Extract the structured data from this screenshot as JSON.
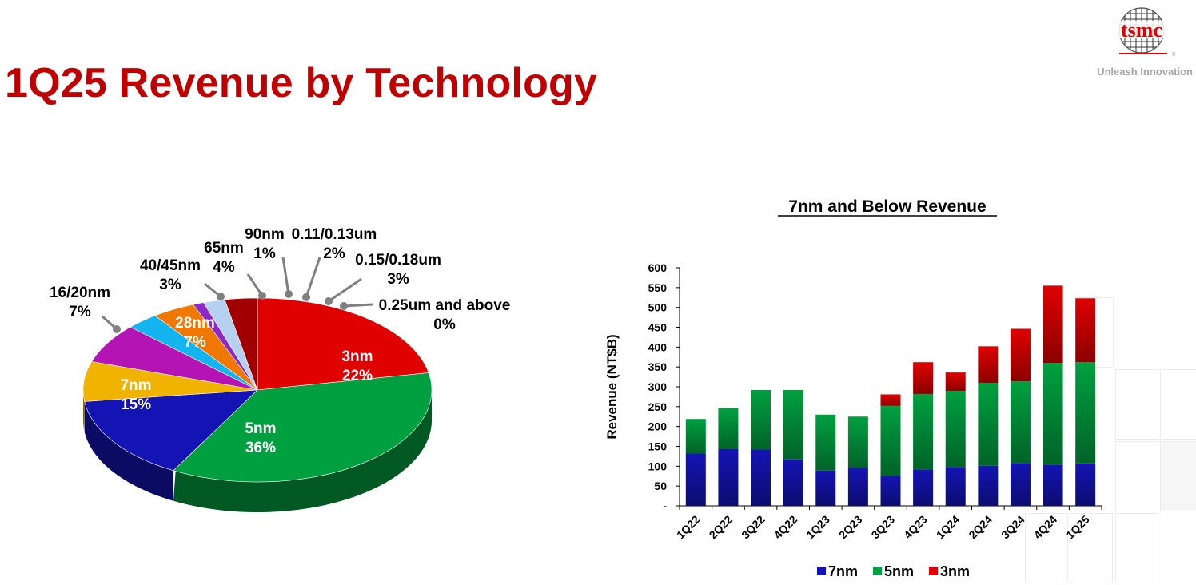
{
  "header": {
    "title": "1Q25 Revenue by Technology",
    "logo_text": "tsmc",
    "tagline": "Unleash Innovation"
  },
  "chart_data": [
    {
      "type": "pie",
      "title": "",
      "slices": [
        {
          "label": "3nm",
          "value": 22,
          "value_label": "22%",
          "color": "#e00000"
        },
        {
          "label": "5nm",
          "value": 36,
          "value_label": "36%",
          "color": "#00a040"
        },
        {
          "label": "7nm",
          "value": 15,
          "value_label": "15%",
          "color": "#1414b4"
        },
        {
          "label": "16/20nm",
          "value": 7,
          "value_label": "7%",
          "color": "#f0b400"
        },
        {
          "label": "28nm",
          "value": 7,
          "value_label": "7%",
          "color": "#b414b4"
        },
        {
          "label": "40/45nm",
          "value": 3,
          "value_label": "3%",
          "color": "#14b4f0"
        },
        {
          "label": "65nm",
          "value": 4,
          "value_label": "4%",
          "color": "#f07800"
        },
        {
          "label": "90nm",
          "value": 1,
          "value_label": "1%",
          "color": "#8c28c8"
        },
        {
          "label": "0.11/0.13um",
          "value": 2,
          "value_label": "2%",
          "color": "#b4d2f0"
        },
        {
          "label": "0.15/0.18um",
          "value": 3,
          "value_label": "3%",
          "color": "#a00000"
        },
        {
          "label": "0.25um and above",
          "value": 0,
          "value_label": "0%",
          "color": "#c0c0c0"
        }
      ]
    },
    {
      "type": "bar",
      "stacked": true,
      "title": "7nm and Below Revenue",
      "xlabel": "",
      "ylabel": "Revenue (NT$B)",
      "ylim": [
        0,
        600
      ],
      "ytick_step": 50,
      "zero_tick_label": "-",
      "categories": [
        "1Q22",
        "2Q22",
        "3Q22",
        "4Q22",
        "1Q23",
        "2Q23",
        "3Q23",
        "4Q23",
        "1Q24",
        "2Q24",
        "3Q24",
        "4Q24",
        "1Q25"
      ],
      "series": [
        {
          "name": "7nm",
          "color": "#1414b4",
          "values": [
            132,
            143,
            142,
            117,
            89,
            96,
            76,
            92,
            98,
            101,
            108,
            104,
            107
          ]
        },
        {
          "name": "5nm",
          "color": "#00a040",
          "values": [
            87,
            103,
            150,
            175,
            141,
            129,
            176,
            190,
            192,
            209,
            206,
            256,
            255
          ]
        },
        {
          "name": "3nm",
          "color": "#e00000",
          "values": [
            0,
            0,
            0,
            0,
            0,
            0,
            29,
            80,
            46,
            92,
            132,
            195,
            161
          ]
        }
      ],
      "legend": "bottom",
      "grid": false
    }
  ]
}
